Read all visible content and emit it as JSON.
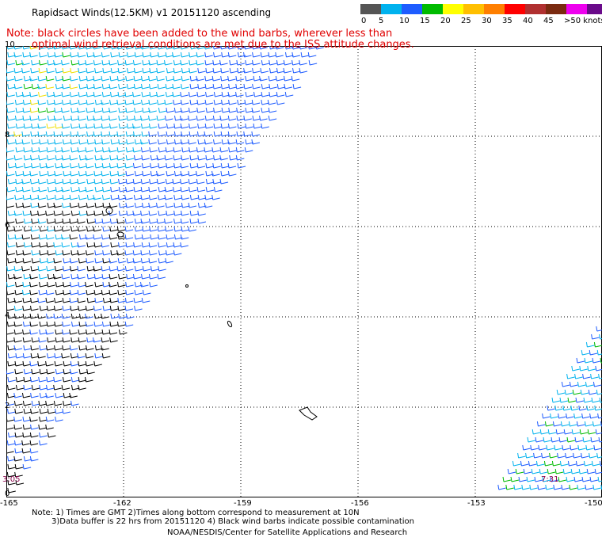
{
  "title": "Rapidsact Winds(12.5KM) v1 20151120 ascending",
  "notes": [
    "Note: black circles have been added to the wind barbs, wherever less than",
    "optimal wind retrieval conditions are met due to the ISS attitude changes."
  ],
  "colorbar": {
    "colors": [
      "#555555",
      "#00b2ee",
      "#1e5cff",
      "#00bb00",
      "#ffff00",
      "#ffbf00",
      "#ff7f00",
      "#ff0000",
      "#b03030",
      "#7a2a10",
      "#ee00ee",
      "#6a0a8a"
    ],
    "labels": [
      "0",
      "5",
      "10",
      "15",
      "20",
      "25",
      "30",
      "35",
      "40",
      "45",
      ">50 knots"
    ]
  },
  "map": {
    "lon_labels": [
      "-165",
      "-162",
      "-159",
      "-156",
      "-153",
      "-150"
    ],
    "lat_labels": [
      "10",
      "8",
      "6",
      "4",
      "2",
      "0"
    ],
    "swath_times": [
      "3:05",
      "7:31"
    ]
  },
  "footer": [
    "Note: 1) Times are GMT 2)Times along bottom correspond to measurement at 10N",
    "3)Data buffer is 22 hrs from 20151120 4) Black wind barbs indicate possible contamination",
    "NOAA/NESDIS/Center for Satellite Applications and Research"
  ]
}
